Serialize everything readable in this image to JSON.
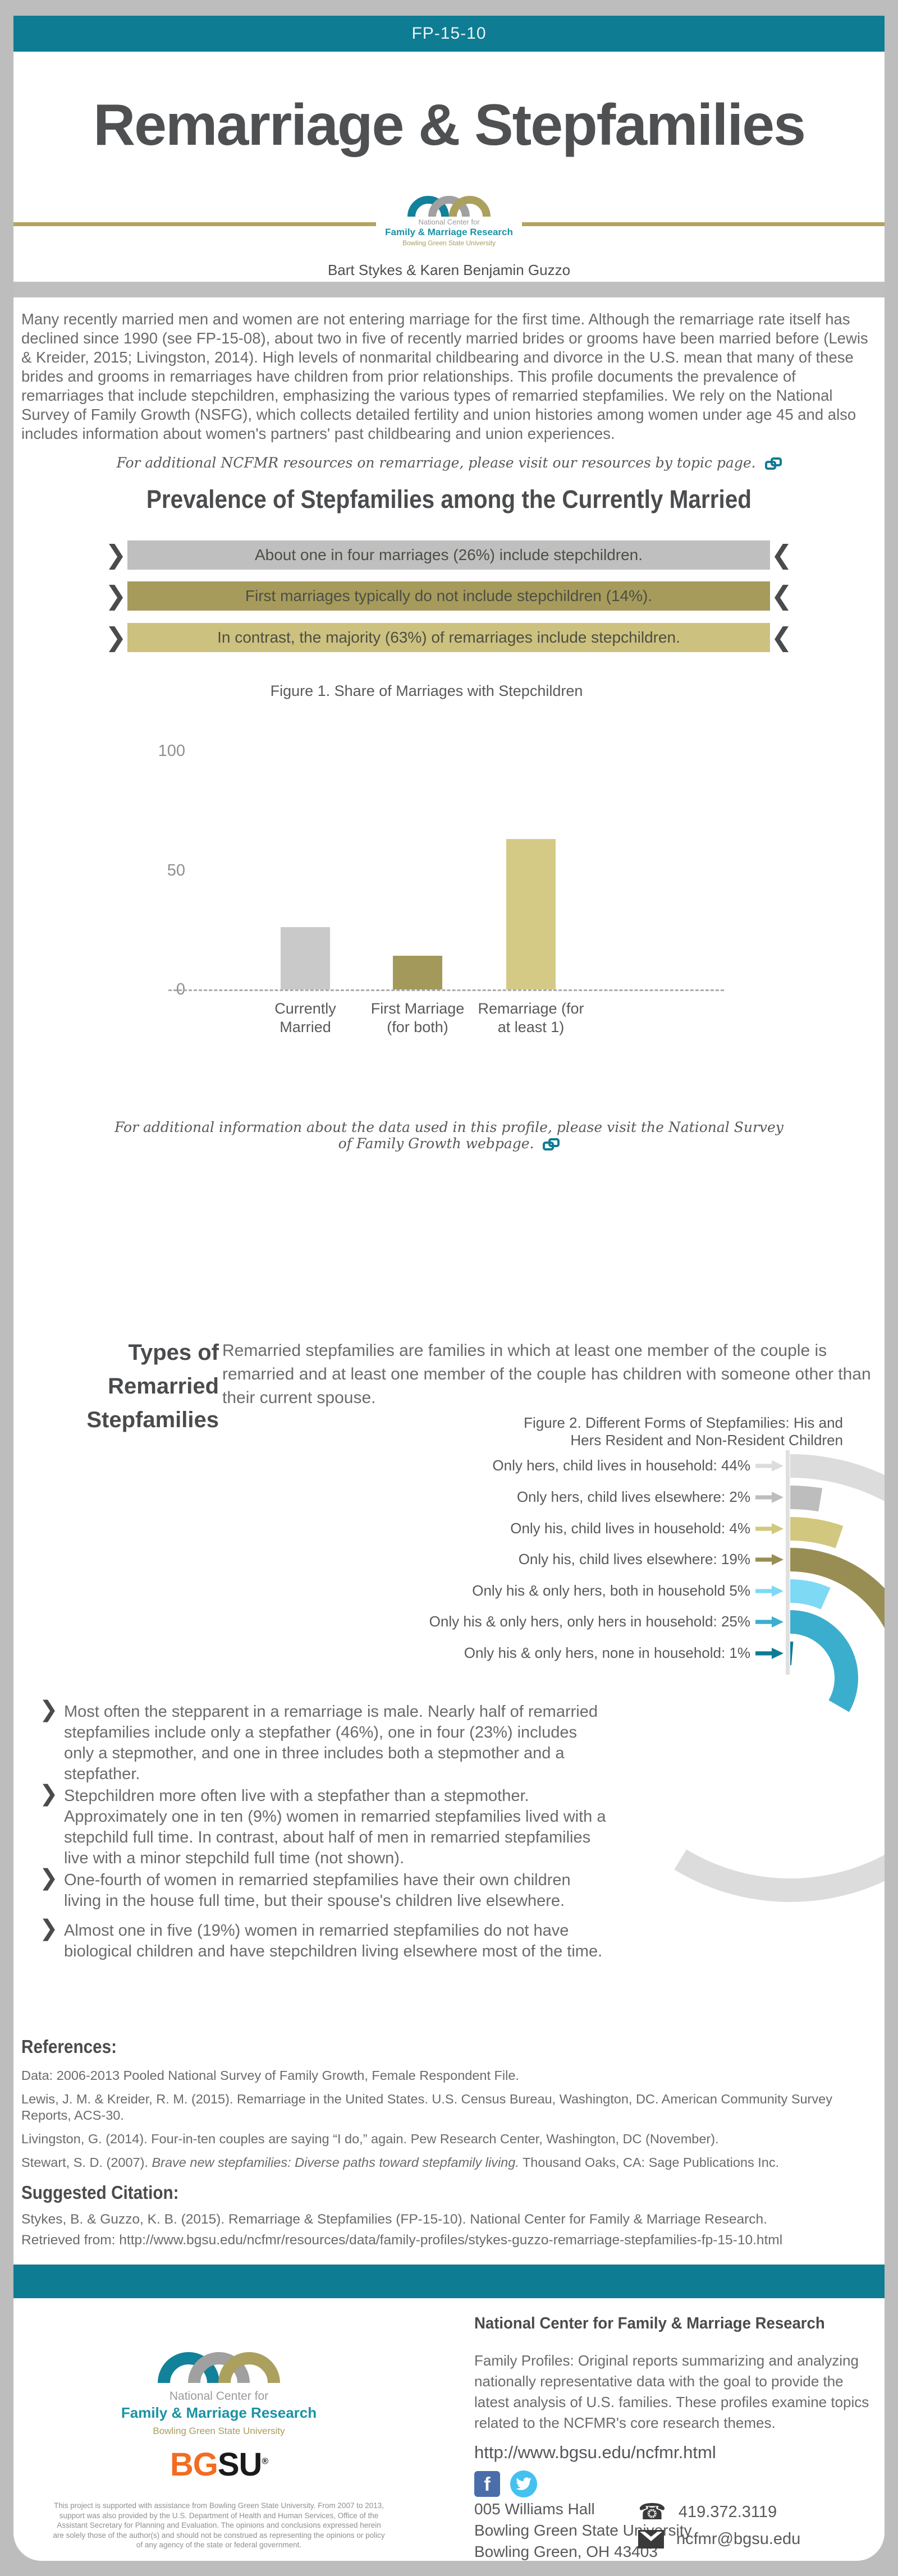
{
  "header": {
    "doc_id": "FP-15-10",
    "title": "Remarriage & Stepfamilies",
    "authors": "Bart Stykes &  Karen Benjamin Guzzo"
  },
  "logo": {
    "line1": "National Center for",
    "line2": "Family & Marriage Research",
    "line3": "Bowling Green State University"
  },
  "intro": "Many recently married men and women are not entering marriage for the first time. Although the remarriage rate itself has declined since 1990 (see FP-15-08), about two in five of recently married brides or grooms have been married before (Lewis & Kreider, 2015; Livingston, 2014). High levels of nonmarital childbearing and divorce in the U.S. mean that many of these brides and grooms in remarriages have children from prior relationships. This profile documents the prevalence of remarriages that include stepchildren, emphasizing the various types of remarried stepfamilies. We rely on the National Survey of Family Growth (NSFG), which collects detailed fertility and union histories among women under age 45 and also includes information about women's partners' past childbearing and union experiences.",
  "resources_note": "For additional NCFMR resources on remarriage, please visit our resources by topic page.",
  "section1": {
    "heading": "Prevalence of Stepfamilies among the Currently Married",
    "banners": [
      {
        "text": "About one in four marriages (26%) include stepchildren.",
        "bg": "#BFBFBF"
      },
      {
        "text": "First marriages typically do not include stepchildren (14%).",
        "bg": "#A69B5B"
      },
      {
        "text": "In contrast, the majority (63%) of remarriages include stepchildren.",
        "bg": "#CCC17E"
      }
    ]
  },
  "chart_data": [
    {
      "type": "bar",
      "title": "Figure 1. Share of Marriages with Stepchildren",
      "categories": [
        "Currently Married",
        "First Marriage (for both)",
        "Remarriage (for at least 1)"
      ],
      "values": [
        26,
        14,
        63
      ],
      "bar_colors": [
        "#C9C9C9",
        "#A3995A",
        "#D5CA85"
      ],
      "xlabel": "",
      "ylabel": "",
      "ylim": [
        0,
        100
      ],
      "yticks": [
        0,
        50,
        100
      ],
      "grid": false,
      "baseline_style": "dashed"
    },
    {
      "type": "radial-bar",
      "title_line1": "Figure 2. Different Forms of Stepfamilies: His and",
      "title_line2": "Hers Resident and Non-Resident Children",
      "categories": [
        "Only hers, child lives in household",
        "Only hers, child lives elsewhere",
        "Only his, child lives in household",
        "Only his, child lives elsewhere",
        "Only his & only hers, both in household",
        "Only his & only hers, only hers in household",
        "Only his & only hers, none in household"
      ],
      "values": [
        44,
        2,
        4,
        19,
        5,
        25,
        1
      ],
      "labels": [
        "Only hers, child lives in household: 44%",
        "Only hers, child lives elsewhere: 2%",
        "Only his, child lives in household: 4%",
        "Only his, child lives elsewhere: 19%",
        "Only his & only hers, both in household 5%",
        "Only his & only hers, only hers in household: 25%",
        "Only his & only hers, none in household: 1%"
      ],
      "colors": [
        "#DCDCDC",
        "#BDBDBD",
        "#D2C77E",
        "#988E54",
        "#7ED9F5",
        "#3BAECD",
        "#0C7C95"
      ],
      "degrees_per_percent": 4.8
    }
  ],
  "fig1_note": "For additional information about the data used in this profile, please visit the National Survey of Family Growth webpage.",
  "section2": {
    "heading_line1": "Types of Remarried",
    "heading_line2": "Stepfamilies",
    "paragraph": "Remarried stepfamilies are families in which at least one member of the couple is remarried and at least one member of the couple has children with someone other than their current spouse."
  },
  "bullets": [
    "Most often the stepparent in a remarriage is male. Nearly half of remarried stepfamilies include only a stepfather (46%), one in four (23%) includes only a stepmother, and one in three includes both a stepmother and a stepfather.",
    "Stepchildren more often live with a stepfather than a stepmother. Approximately one in ten (9%) women in remarried stepfamilies lived with a stepchild full time. In contrast, about half of men in remarried stepfamilies live with a minor stepchild full time (not shown).",
    "One-fourth of women in remarried stepfamilies have their own children living in the house full time, but their spouse's children live elsewhere.",
    "Almost one in five (19%) women in remarried stepfamilies do not have biological children and have stepchildren living elsewhere most of the time."
  ],
  "references": {
    "heading": "References:",
    "items": [
      "Data: 2006-2013 Pooled National Survey of Family Growth, Female Respondent File.",
      "Lewis, J. M. & Kreider, R. M. (2015). Remarriage in the United States. U.S. Census Bureau, Washington, DC. American Community Survey Reports, ACS-30.",
      "Livingston, G. (2014). Four-in-ten couples are saying “I do,” again. Pew Research Center, Washington, DC (November)."
    ],
    "stewart": {
      "pre": "Stewart, S. D. (2007). ",
      "italic": "Brave new stepfamilies: Diverse paths toward stepfamily living.",
      "post": " Thousand Oaks, CA: Sage Publications Inc."
    }
  },
  "citation": {
    "heading": "Suggested Citation:",
    "text": "Stykes, B. & Guzzo, K. B. (2015). Remarriage & Stepfamilies (FP-15-10). National Center for Family & Marriage Research. Retrieved from: http://www.bgsu.edu/ncfmr/resources/data/family-profiles/stykes-guzzo-remarriage-stepfamilies-fp-15-10.html"
  },
  "footer": {
    "heading": "National Center for Family & Marriage Research",
    "paragraph": "Family Profiles: Original reports summarizing and analyzing nationally representative data with the goal to provide the latest analysis of U.S. families. These profiles examine topics related to the NCFMR's core research themes.",
    "url": "http://www.bgsu.edu/ncfmr.html",
    "address_line1": "005 Williams Hall",
    "address_line2": "Bowling Green State University",
    "address_line3": "Bowling Green, OH 43403",
    "phone": "419.372.3119",
    "email": "ncfmr@bgsu.edu",
    "bgsu_bg": "BG",
    "bgsu_su": "SU",
    "bgsu_reg": "®",
    "disclaimer": "This project is supported with assistance from Bowling Green State University. From 2007 to 2013, support was also provided by the U.S. Department of Health and Human Services, Office of the Assistant Secretary for Planning and Evaluation. The opinions and conclusions expressed herein are solely those of the author(s) and should not be construed as representing the opinions or policy of any agency of the state or federal government."
  },
  "colors": {
    "teal_brand": "#0E7C92",
    "page_gray": "#BDBDBD",
    "gold_line": "#B2A45F",
    "text_dark": "#4A4B4D",
    "text_body": "#6A6B6D",
    "bgsu_orange": "#F26C22",
    "facebook_blue": "#4A6EA9",
    "twitter_blue": "#45C1F0"
  }
}
